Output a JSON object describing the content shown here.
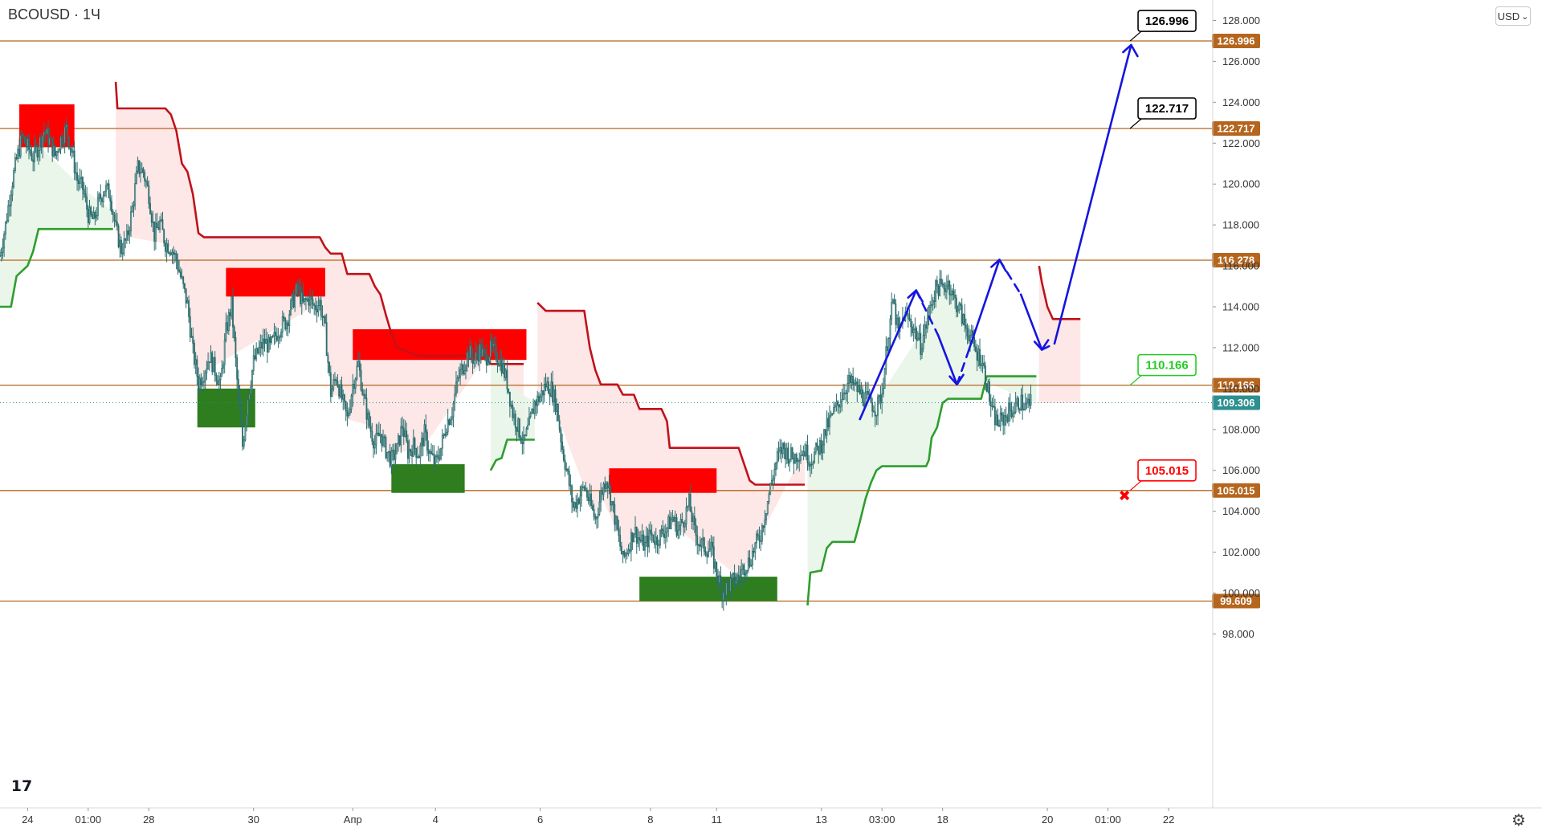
{
  "header": {
    "symbol_title": "BCOUSD · 1Ч"
  },
  "toolbar": {
    "currency_label": "USD",
    "currency_chevron": "⌄"
  },
  "footer": {
    "logo_text": "17",
    "settings_icon": "gear-icon",
    "settings_glyph": "⚙"
  },
  "colors": {
    "level_line": "#b5651d",
    "level_tag": "#b5651d",
    "trend_up": "#2e9e2e",
    "trend_down": "#c0121a",
    "zone_red": "#ff0000",
    "zone_green": "#2e7d1e",
    "arrow": "#1515e0",
    "candle": "#2d6e6e",
    "current_price_tag": "#2d8f8f"
  },
  "chart_data": {
    "type": "candlestick",
    "symbol": "BCOUSD",
    "interval": "1Ч",
    "currency": "USD",
    "ylim": [
      96.8,
      129.0
    ],
    "y_ticks": [
      98.0,
      100.0,
      102.0,
      104.0,
      106.0,
      108.0,
      110.0,
      112.0,
      114.0,
      116.0,
      118.0,
      120.0,
      122.0,
      124.0,
      126.0,
      128.0
    ],
    "y_tick_labels": [
      "98.000",
      "100.000",
      "102.000",
      "104.000",
      "106.000",
      "108.000",
      "110.000",
      "112.000",
      "114.000",
      "116.000",
      "118.000",
      "120.000",
      "122.000",
      "124.000",
      "126.000",
      "128.000"
    ],
    "x_range": [
      0,
      220
    ],
    "x_ticks": [
      {
        "label": "24",
        "x": 5
      },
      {
        "label": "01:00",
        "x": 16
      },
      {
        "label": "28",
        "x": 27
      },
      {
        "label": "30",
        "x": 46
      },
      {
        "label": "Апр",
        "x": 64
      },
      {
        "label": "4",
        "x": 79
      },
      {
        "label": "6",
        "x": 98
      },
      {
        "label": "8",
        "x": 118
      },
      {
        "label": "11",
        "x": 130
      },
      {
        "label": "13",
        "x": 149
      },
      {
        "label": "03:00",
        "x": 160
      },
      {
        "label": "18",
        "x": 171
      },
      {
        "label": "20",
        "x": 190
      },
      {
        "label": "01:00",
        "x": 201
      },
      {
        "label": "22",
        "x": 212
      }
    ],
    "levels": [
      {
        "price": 126.996,
        "label": "126.996"
      },
      {
        "price": 122.717,
        "label": "122.717"
      },
      {
        "price": 116.278,
        "label": "116.278"
      },
      {
        "price": 110.166,
        "label": "110.166"
      },
      {
        "price": 105.015,
        "label": "105.015"
      },
      {
        "price": 99.609,
        "label": "99.609"
      }
    ],
    "current_price": {
      "price": 109.306,
      "label": "109.306"
    },
    "callouts": [
      {
        "label": "126.996",
        "price": 126.996,
        "x": 205,
        "color": "#000000"
      },
      {
        "label": "122.717",
        "price": 122.717,
        "x": 205,
        "color": "#000000"
      },
      {
        "label": "110.166",
        "price": 110.166,
        "x": 205,
        "color": "#22cc22"
      },
      {
        "label": "105.015",
        "price": 105.015,
        "x": 205,
        "color": "#ff0000"
      }
    ],
    "stop_marker": {
      "x": 204,
      "price": 104.75,
      "symbol": "✖"
    },
    "zones": [
      {
        "type": "supply",
        "x0": 3.5,
        "x1": 13.5,
        "y0": 121.8,
        "y1": 123.9
      },
      {
        "type": "supply",
        "x0": 41,
        "x1": 59,
        "y0": 114.5,
        "y1": 115.9
      },
      {
        "type": "supply",
        "x0": 64,
        "x1": 95.5,
        "y0": 111.4,
        "y1": 112.9
      },
      {
        "type": "supply",
        "x0": 110.5,
        "x1": 130,
        "y0": 104.9,
        "y1": 106.1
      },
      {
        "type": "demand",
        "x0": 35.8,
        "x1": 46.3,
        "y0": 108.1,
        "y1": 110.0
      },
      {
        "type": "demand",
        "x0": 71,
        "x1": 84.3,
        "y0": 104.9,
        "y1": 106.3
      },
      {
        "type": "demand",
        "x0": 116,
        "x1": 141,
        "y0": 99.6,
        "y1": 100.8
      }
    ],
    "trend_segments": [
      {
        "type": "up",
        "points": [
          [
            0,
            114.0
          ],
          [
            2,
            114.0
          ],
          [
            3,
            115.5
          ],
          [
            5,
            116.0
          ],
          [
            6,
            116.7
          ],
          [
            7,
            117.8
          ],
          [
            15,
            117.8
          ],
          [
            20.5,
            117.8
          ]
        ]
      },
      {
        "type": "down",
        "points": [
          [
            21,
            125.0
          ],
          [
            21.3,
            123.7
          ],
          [
            30,
            123.7
          ],
          [
            31,
            123.4
          ],
          [
            32,
            122.6
          ],
          [
            33,
            121.0
          ],
          [
            34,
            120.6
          ],
          [
            35,
            119.5
          ],
          [
            36,
            117.6
          ],
          [
            37,
            117.4
          ],
          [
            58,
            117.4
          ],
          [
            59,
            116.9
          ],
          [
            60,
            116.6
          ],
          [
            62,
            116.6
          ],
          [
            63,
            115.6
          ],
          [
            67,
            115.6
          ],
          [
            68,
            115.0
          ],
          [
            69,
            114.6
          ],
          [
            70,
            113.6
          ],
          [
            71,
            112.7
          ],
          [
            72,
            112.0
          ],
          [
            76,
            111.6
          ],
          [
            88,
            111.6
          ],
          [
            89,
            111.2
          ],
          [
            95,
            111.2
          ]
        ]
      },
      {
        "type": "up",
        "points": [
          [
            89,
            106.0
          ],
          [
            90,
            106.5
          ],
          [
            91,
            106.6
          ],
          [
            92,
            107.5
          ],
          [
            97,
            107.5
          ]
        ]
      },
      {
        "type": "down",
        "points": [
          [
            97.5,
            114.2
          ],
          [
            99,
            113.8
          ],
          [
            106,
            113.8
          ],
          [
            107,
            112.0
          ],
          [
            108,
            110.9
          ],
          [
            109,
            110.2
          ],
          [
            112,
            110.2
          ],
          [
            113,
            109.7
          ],
          [
            115,
            109.7
          ],
          [
            116,
            109.0
          ],
          [
            120,
            109.0
          ],
          [
            121,
            108.4
          ],
          [
            121.5,
            107.1
          ],
          [
            134,
            107.1
          ],
          [
            135,
            106.3
          ],
          [
            136,
            105.5
          ],
          [
            137,
            105.3
          ],
          [
            146,
            105.3
          ]
        ]
      },
      {
        "type": "up",
        "points": [
          [
            146.5,
            99.4
          ],
          [
            147,
            101.0
          ],
          [
            149,
            101.1
          ],
          [
            150,
            102.2
          ],
          [
            151,
            102.5
          ],
          [
            155,
            102.5
          ],
          [
            156,
            103.5
          ],
          [
            157,
            104.6
          ],
          [
            158,
            105.4
          ],
          [
            159,
            106.0
          ],
          [
            160,
            106.2
          ],
          [
            168,
            106.2
          ],
          [
            168.5,
            106.5
          ],
          [
            169,
            107.6
          ],
          [
            170,
            108.1
          ],
          [
            171,
            109.3
          ],
          [
            172,
            109.5
          ],
          [
            178,
            109.5
          ],
          [
            179,
            110.6
          ],
          [
            188,
            110.6
          ]
        ]
      },
      {
        "type": "down",
        "points": [
          [
            188.5,
            116.0
          ],
          [
            189,
            115.2
          ],
          [
            190,
            114.0
          ],
          [
            191,
            113.4
          ],
          [
            196,
            113.4
          ]
        ]
      }
    ],
    "arrows": [
      {
        "style": "solid",
        "points": [
          [
            156,
            108.5
          ],
          [
            166.2,
            114.8
          ]
        ]
      },
      {
        "style": "dashed",
        "points": [
          [
            166.2,
            114.8
          ],
          [
            170.2,
            112.6
          ]
        ]
      },
      {
        "style": "solid",
        "points": [
          [
            170.2,
            112.6
          ],
          [
            173.6,
            110.2
          ]
        ]
      },
      {
        "style": "dashed",
        "points": [
          [
            173.6,
            110.2
          ],
          [
            175.4,
            111.6
          ]
        ]
      },
      {
        "style": "solid",
        "points": [
          [
            175.4,
            111.6
          ],
          [
            181.3,
            116.3
          ]
        ]
      },
      {
        "style": "dashed",
        "points": [
          [
            181.3,
            116.3
          ],
          [
            185.2,
            114.6
          ]
        ]
      },
      {
        "style": "solid",
        "points": [
          [
            185.2,
            114.6
          ],
          [
            189,
            111.9
          ]
        ]
      },
      {
        "style": "dashed",
        "points": [
          [
            189,
            111.9
          ],
          [
            191.3,
            112.2
          ]
        ]
      },
      {
        "style": "solid",
        "points": [
          [
            191.3,
            112.2
          ],
          [
            205.2,
            126.8
          ]
        ]
      }
    ],
    "price_path": [
      [
        0,
        116.5
      ],
      [
        1,
        118.0
      ],
      [
        2,
        119.8
      ],
      [
        3,
        121.2
      ],
      [
        4,
        122.3
      ],
      [
        5,
        121.8
      ],
      [
        6,
        121.3
      ],
      [
        7,
        121.9
      ],
      [
        8,
        122.6
      ],
      [
        9,
        122.1
      ],
      [
        10,
        121.4
      ],
      [
        11,
        122.2
      ],
      [
        12,
        122.7
      ],
      [
        13,
        121.6
      ],
      [
        14,
        120.2
      ],
      [
        15,
        119.8
      ],
      [
        16,
        118.5
      ],
      [
        17,
        118.2
      ],
      [
        18,
        119.2
      ],
      [
        19,
        119.8
      ],
      [
        20,
        119.5
      ],
      [
        21,
        117.8
      ],
      [
        22,
        116.8
      ],
      [
        23,
        117.3
      ],
      [
        24,
        118.8
      ],
      [
        25,
        120.8
      ],
      [
        26,
        120.6
      ],
      [
        27,
        119.5
      ],
      [
        28,
        117.5
      ],
      [
        29,
        118.1
      ],
      [
        30,
        117.1
      ],
      [
        31,
        116.9
      ],
      [
        32,
        116.3
      ],
      [
        33,
        115.2
      ],
      [
        34,
        114.1
      ],
      [
        35,
        111.8
      ],
      [
        36,
        110.3
      ],
      [
        37,
        110.8
      ],
      [
        38,
        111.6
      ],
      [
        39,
        110.9
      ],
      [
        40,
        110.2
      ],
      [
        41,
        112.8
      ],
      [
        42,
        114.1
      ],
      [
        43,
        110.4
      ],
      [
        44,
        107.2
      ],
      [
        45,
        109.6
      ],
      [
        46,
        111.3
      ],
      [
        47,
        111.9
      ],
      [
        48,
        112.3
      ],
      [
        49,
        112.0
      ],
      [
        50,
        112.6
      ],
      [
        51,
        113.1
      ],
      [
        52,
        113.3
      ],
      [
        53,
        114.2
      ],
      [
        54,
        114.9
      ],
      [
        55,
        114.1
      ],
      [
        56,
        114.4
      ],
      [
        57,
        114.0
      ],
      [
        58,
        114.2
      ],
      [
        59,
        112.8
      ],
      [
        60,
        109.8
      ],
      [
        61,
        110.6
      ],
      [
        62,
        109.5
      ],
      [
        63,
        108.5
      ],
      [
        64,
        110.2
      ],
      [
        65,
        111.2
      ],
      [
        66,
        109.5
      ],
      [
        67,
        108.2
      ],
      [
        68,
        107.3
      ],
      [
        69,
        107.8
      ],
      [
        70,
        107.0
      ],
      [
        71,
        106.5
      ],
      [
        72,
        107.0
      ],
      [
        73,
        108.2
      ],
      [
        74,
        106.9
      ],
      [
        75,
        107.2
      ],
      [
        76,
        106.8
      ],
      [
        77,
        107.8
      ],
      [
        78,
        106.8
      ],
      [
        79,
        106.3
      ],
      [
        80,
        107.1
      ],
      [
        81,
        108.3
      ],
      [
        82,
        108.9
      ],
      [
        83,
        110.4
      ],
      [
        84,
        111.1
      ],
      [
        85,
        111.8
      ],
      [
        86,
        111.4
      ],
      [
        87,
        111.9
      ],
      [
        88,
        111.5
      ],
      [
        89,
        111.9
      ],
      [
        90,
        111.7
      ],
      [
        91,
        111.2
      ],
      [
        92,
        110.3
      ],
      [
        93,
        108.8
      ],
      [
        94,
        108.1
      ],
      [
        95,
        107.3
      ],
      [
        96,
        108.2
      ],
      [
        97,
        109.3
      ],
      [
        98,
        109.6
      ],
      [
        99,
        110.2
      ],
      [
        100,
        110.0
      ],
      [
        101,
        109.1
      ],
      [
        102,
        107.1
      ],
      [
        103,
        105.7
      ],
      [
        104,
        104.2
      ],
      [
        105,
        104.7
      ],
      [
        106,
        105.2
      ],
      [
        107,
        104.4
      ],
      [
        108,
        103.6
      ],
      [
        109,
        104.8
      ],
      [
        110,
        105.7
      ],
      [
        111,
        104.4
      ],
      [
        112,
        103.0
      ],
      [
        113,
        101.6
      ],
      [
        114,
        102.3
      ],
      [
        115,
        103.1
      ],
      [
        116,
        102.6
      ],
      [
        117,
        102.3
      ],
      [
        118,
        102.9
      ],
      [
        119,
        102.6
      ],
      [
        120,
        102.9
      ],
      [
        121,
        103.2
      ],
      [
        122,
        103.7
      ],
      [
        123,
        103.1
      ],
      [
        124,
        103.6
      ],
      [
        125,
        104.4
      ],
      [
        126,
        103.0
      ],
      [
        127,
        102.4
      ],
      [
        128,
        102.2
      ],
      [
        129,
        102.1
      ],
      [
        130,
        101.0
      ],
      [
        131,
        100.1
      ],
      [
        132,
        100.3
      ],
      [
        133,
        100.6
      ],
      [
        134,
        100.8
      ],
      [
        135,
        101.3
      ],
      [
        136,
        101.6
      ],
      [
        137,
        102.3
      ],
      [
        138,
        102.9
      ],
      [
        139,
        104.2
      ],
      [
        140,
        105.5
      ],
      [
        141,
        106.6
      ],
      [
        142,
        107.1
      ],
      [
        143,
        106.8
      ],
      [
        144,
        106.6
      ],
      [
        145,
        106.9
      ],
      [
        146,
        107.0
      ],
      [
        147,
        106.5
      ],
      [
        148,
        106.9
      ],
      [
        149,
        107.3
      ],
      [
        150,
        108.1
      ],
      [
        151,
        108.7
      ],
      [
        152,
        109.2
      ],
      [
        153,
        109.9
      ],
      [
        154,
        110.3
      ],
      [
        155,
        110.1
      ],
      [
        156,
        109.8
      ],
      [
        157,
        109.5
      ],
      [
        158,
        109.3
      ],
      [
        159,
        109.0
      ],
      [
        160,
        109.8
      ],
      [
        161,
        112.3
      ],
      [
        162,
        114.3
      ],
      [
        163,
        112.6
      ],
      [
        164,
        113.6
      ],
      [
        165,
        113.3
      ],
      [
        166,
        112.8
      ],
      [
        167,
        112.1
      ],
      [
        168,
        113.1
      ],
      [
        169,
        114.3
      ],
      [
        170,
        115.0
      ],
      [
        171,
        114.9
      ],
      [
        172,
        115.2
      ],
      [
        173,
        114.4
      ],
      [
        174,
        113.9
      ],
      [
        175,
        113.1
      ],
      [
        176,
        112.6
      ],
      [
        177,
        111.8
      ],
      [
        178,
        111.5
      ],
      [
        179,
        110.3
      ],
      [
        180,
        108.8
      ],
      [
        181,
        108.3
      ],
      [
        182,
        108.5
      ],
      [
        183,
        108.9
      ],
      [
        184,
        109.0
      ],
      [
        185,
        109.4
      ],
      [
        186,
        109.1
      ],
      [
        187,
        109.3
      ]
    ]
  }
}
